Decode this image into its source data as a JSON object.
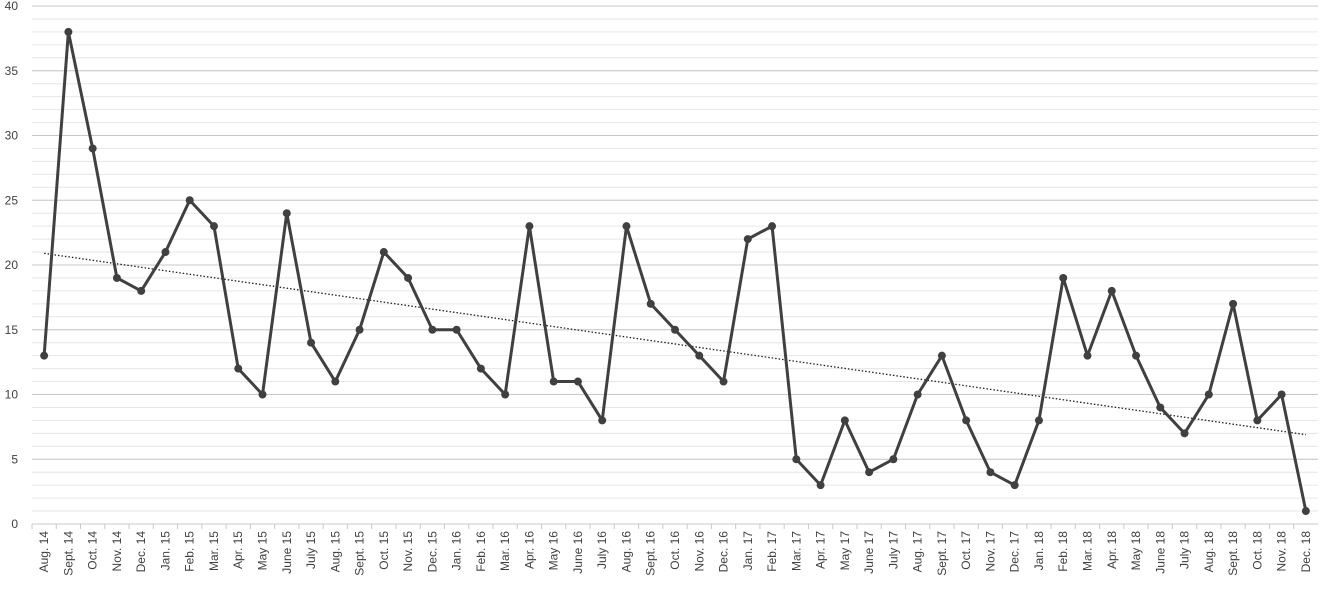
{
  "chart_data": {
    "type": "line",
    "categories": [
      "Aug. 14",
      "Sept. 14",
      "Oct. 14",
      "Nov. 14",
      "Dec. 14",
      "Jan. 15",
      "Feb. 15",
      "Mar. 15",
      "Apr. 15",
      "May 15",
      "June 15",
      "July 15",
      "Aug. 15",
      "Sept. 15",
      "Oct. 15",
      "Nov. 15",
      "Dec. 15",
      "Jan. 16",
      "Feb. 16",
      "Mar. 16",
      "Apr. 16",
      "May 16",
      "June 16",
      "July 16",
      "Aug. 16",
      "Sept. 16",
      "Oct. 16",
      "Nov. 16",
      "Dec. 16",
      "Jan. 17",
      "Feb. 17",
      "Mar. 17",
      "Apr. 17",
      "May 17",
      "June 17",
      "July 17",
      "Aug. 17",
      "Sept. 17",
      "Oct. 17",
      "Nov. 17",
      "Dec. 17",
      "Jan. 18",
      "Feb. 18",
      "Mar. 18",
      "Apr. 18",
      "May 18",
      "June 18",
      "July 18",
      "Aug. 18",
      "Sept. 18",
      "Oct. 18",
      "Nov. 18",
      "Dec. 18"
    ],
    "values": [
      13,
      38,
      29,
      19,
      18,
      21,
      25,
      23,
      12,
      10,
      24,
      14,
      11,
      15,
      21,
      19,
      15,
      15,
      12,
      10,
      23,
      11,
      11,
      8,
      23,
      17,
      15,
      13,
      11,
      22,
      23,
      5,
      3,
      8,
      4,
      5,
      10,
      13,
      8,
      4,
      3,
      8,
      19,
      13,
      18,
      13,
      9,
      7,
      10,
      17,
      8,
      10,
      1
    ],
    "color": "#404040",
    "trendline": [
      20.9,
      6.9
    ],
    "ylim": [
      0,
      40
    ],
    "yticks": [
      0,
      5,
      10,
      15,
      20,
      25,
      30,
      35,
      40
    ],
    "grid": true,
    "minor_grid_step": 1
  }
}
